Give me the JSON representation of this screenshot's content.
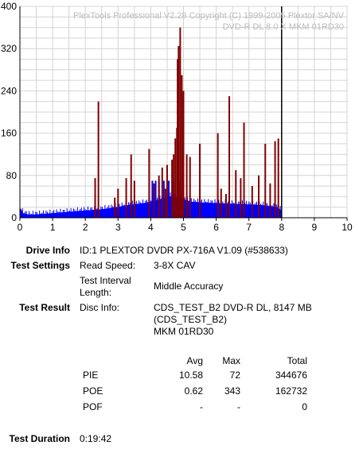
{
  "chart_data": {
    "type": "bar",
    "watermark_line1": "PlexTools Professional V2.28 Copyright (C) 1999-2005 Plextor SA/NV",
    "watermark_line2": "DVD-R DL   8.0 X   MKM 01RD30",
    "xlim": [
      0,
      10
    ],
    "ylim": [
      0,
      400
    ],
    "x_ticks": [
      "0",
      "1",
      "2",
      "3",
      "4",
      "5",
      "6",
      "7",
      "8",
      "9",
      "10"
    ],
    "y_ticks": [
      "0",
      "80",
      "160",
      "240",
      "320",
      "400"
    ],
    "grid": true,
    "cursor_x": 8,
    "series": [
      {
        "color": "#0000ff",
        "description": "PIE baseline",
        "points": [
          [
            0,
            18
          ],
          [
            0.1,
            8
          ],
          [
            0.3,
            5
          ],
          [
            0.6,
            6
          ],
          [
            1.0,
            8
          ],
          [
            1.4,
            10
          ],
          [
            1.8,
            12
          ],
          [
            2.2,
            14
          ],
          [
            2.6,
            16
          ],
          [
            3.0,
            20
          ],
          [
            3.4,
            24
          ],
          [
            3.8,
            27
          ],
          [
            4.0,
            30
          ],
          [
            4.2,
            33
          ],
          [
            4.4,
            36
          ],
          [
            4.6,
            40
          ],
          [
            4.8,
            38
          ],
          [
            5.0,
            34
          ],
          [
            5.2,
            30
          ],
          [
            5.6,
            28
          ],
          [
            6.0,
            27
          ],
          [
            6.4,
            26
          ],
          [
            6.8,
            25
          ],
          [
            7.2,
            24
          ],
          [
            7.6,
            22
          ],
          [
            7.9,
            18
          ],
          [
            8.0,
            12
          ]
        ],
        "spikes_x": [
          4.05,
          4.15,
          4.25,
          4.4,
          4.55,
          4.7,
          4.85
        ]
      },
      {
        "color": "#800000",
        "description": "PIE spikes",
        "spikes": [
          [
            2.3,
            75
          ],
          [
            2.4,
            220
          ],
          [
            2.9,
            38
          ],
          [
            3.0,
            55
          ],
          [
            3.25,
            75
          ],
          [
            3.4,
            120
          ],
          [
            3.5,
            70
          ],
          [
            3.95,
            130
          ],
          [
            4.1,
            65
          ],
          [
            4.25,
            80
          ],
          [
            4.35,
            95
          ],
          [
            4.45,
            55
          ],
          [
            4.5,
            100
          ],
          [
            4.65,
            110
          ],
          [
            4.7,
            120
          ],
          [
            4.75,
            150
          ],
          [
            4.8,
            170
          ],
          [
            4.82,
            300
          ],
          [
            4.85,
            325
          ],
          [
            4.9,
            360
          ],
          [
            4.95,
            270
          ],
          [
            5.0,
            240
          ],
          [
            5.1,
            120
          ],
          [
            5.2,
            115
          ],
          [
            5.5,
            140
          ],
          [
            6.05,
            160
          ],
          [
            6.15,
            55
          ],
          [
            6.3,
            45
          ],
          [
            6.4,
            230
          ],
          [
            6.6,
            90
          ],
          [
            6.75,
            75
          ],
          [
            6.85,
            180
          ],
          [
            7.1,
            60
          ],
          [
            7.3,
            80
          ],
          [
            7.5,
            140
          ],
          [
            7.65,
            65
          ],
          [
            7.8,
            145
          ],
          [
            7.9,
            150
          ]
        ]
      }
    ]
  },
  "drive_info": {
    "label": "Drive Info",
    "value": "ID:1 PLEXTOR DVDR PX-716A V1.09 (#538633)"
  },
  "test_settings": {
    "label": "Test Settings",
    "read_speed_label": "Read Speed:",
    "read_speed_value": "3-8X CAV",
    "interval_label_1": "Test Interval",
    "interval_label_2": "Length:",
    "interval_value": "Middle Accuracy"
  },
  "test_result": {
    "label": "Test Result",
    "disc_info_label": "Disc Info:",
    "disc_line1": "CDS_TEST_B2 DVD-R DL, 8147 MB",
    "disc_line2": "(CDS_TEST_B2)",
    "disc_line3": "MKM 01RD30"
  },
  "stats": {
    "headers": {
      "avg": "Avg",
      "max": "Max",
      "total": "Total"
    },
    "rows": [
      {
        "name": "PIE",
        "avg": "10.58",
        "max": "72",
        "total": "344676"
      },
      {
        "name": "POE",
        "avg": "0.62",
        "max": "343",
        "total": "162732"
      },
      {
        "name": "POF",
        "avg": "-",
        "max": "-",
        "total": "0"
      }
    ]
  },
  "duration": {
    "label": "Test Duration",
    "value": "0:19:42"
  }
}
